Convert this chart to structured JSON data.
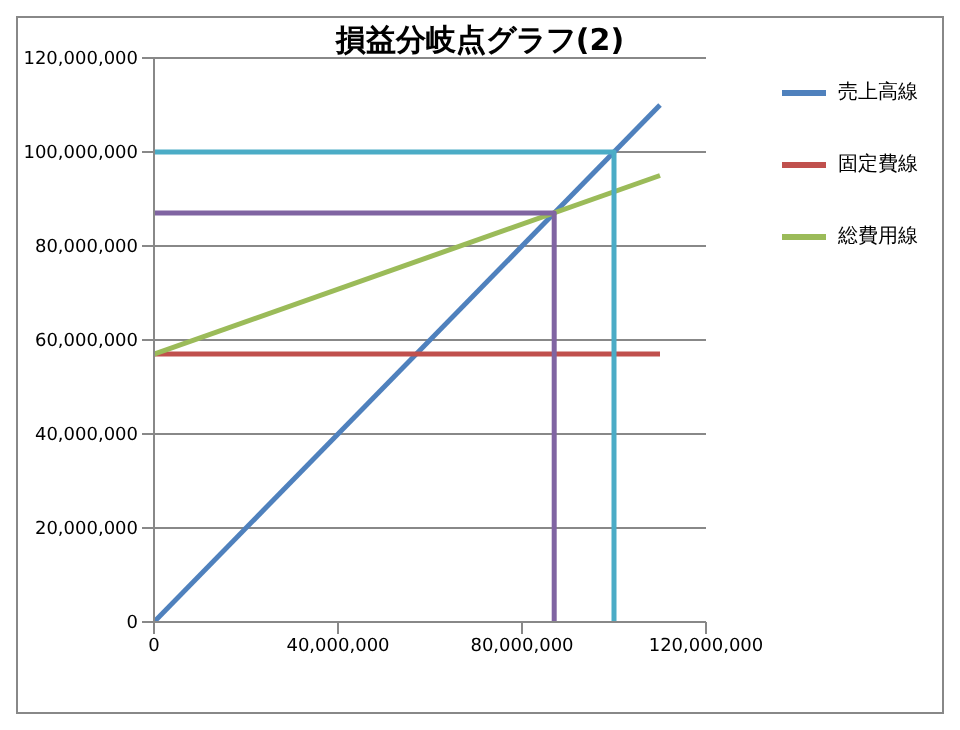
{
  "chart_data": {
    "type": "line",
    "title": "損益分岐点グラフ(2)",
    "legend": "right",
    "grid": "y",
    "marker": "none",
    "line_style": "solid",
    "xlim": [
      0,
      120000000
    ],
    "ylim": [
      0,
      120000000
    ],
    "xticks": [
      {
        "value": 0,
        "label": "0"
      },
      {
        "value": 40000000,
        "label": "40,000,000"
      },
      {
        "value": 80000000,
        "label": "80,000,000"
      },
      {
        "value": 120000000,
        "label": "120,000,000"
      }
    ],
    "yticks": [
      {
        "value": 0,
        "label": "0"
      },
      {
        "value": 20000000,
        "label": "20,000,000"
      },
      {
        "value": 40000000,
        "label": "40,000,000"
      },
      {
        "value": 60000000,
        "label": "60,000,000"
      },
      {
        "value": 80000000,
        "label": "80,000,000"
      },
      {
        "value": 100000000,
        "label": "100,000,000"
      },
      {
        "value": 120000000,
        "label": "120,000,000"
      }
    ],
    "series": [
      {
        "name": "売上高線",
        "color": "#4f81bd",
        "x": [
          0,
          110000000
        ],
        "values": [
          0,
          110000000
        ]
      },
      {
        "name": "固定費線",
        "color": "#c0504d",
        "x": [
          0,
          110000000
        ],
        "values": [
          57000000,
          57000000
        ]
      },
      {
        "name": "総費用線",
        "color": "#9bbb59",
        "x": [
          0,
          110000000
        ],
        "values": [
          57000000,
          95000000
        ]
      },
      {
        "color": "#8064a2",
        "x": [
          0,
          87000000,
          87000000
        ],
        "values": [
          87000000,
          87000000,
          0
        ]
      },
      {
        "color": "#4bacc6",
        "x": [
          0,
          100000000,
          100000000
        ],
        "values": [
          100000000,
          100000000,
          0
        ]
      }
    ]
  }
}
